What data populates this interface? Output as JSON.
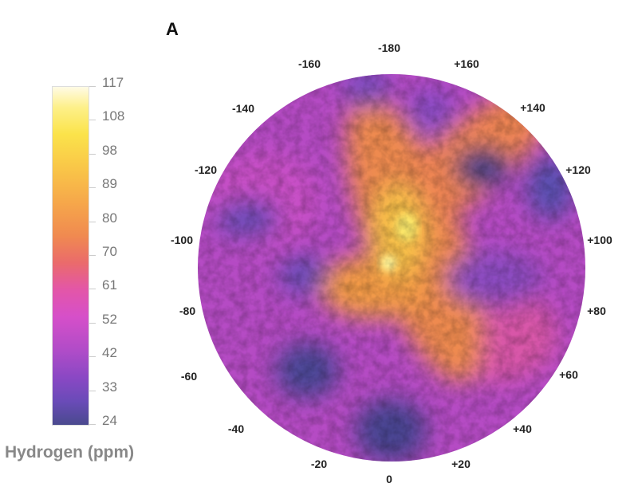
{
  "panel_label": "A",
  "colorbar": {
    "title": "Hydrogen (ppm)",
    "ticks": [
      "117",
      "108",
      "98",
      "89",
      "80",
      "70",
      "61",
      "52",
      "42",
      "33",
      "24"
    ],
    "range": [
      24,
      117
    ],
    "colors": [
      "#fffbe6",
      "#fbe34a",
      "#f6a84a",
      "#ea6b6b",
      "#d64fc9",
      "#8a48c4",
      "#4a4a8e"
    ]
  },
  "map": {
    "projection": "polar",
    "longitude_labels": [
      "-180",
      "-160",
      "+160",
      "-140",
      "+140",
      "-120",
      "+120",
      "-100",
      "+100",
      "-80",
      "+80",
      "-60",
      "+60",
      "-40",
      "+40",
      "-20",
      "+20",
      "0"
    ]
  }
}
